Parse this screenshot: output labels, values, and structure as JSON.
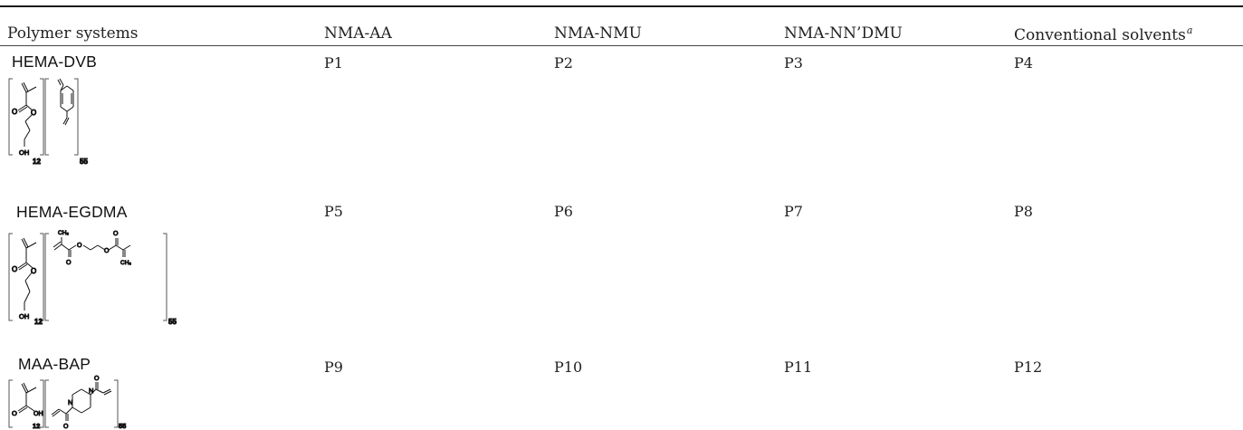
{
  "table": {
    "headers": [
      "Polymer systems",
      "NMA-AA",
      "NMA-NMU",
      "NMA-NN’DMU",
      "Conventional solvents"
    ],
    "header_footnote_mark": "a",
    "rows": [
      {
        "system": "HEMA-DVB",
        "cells": [
          "P1",
          "P2",
          "P3",
          "P4"
        ],
        "structure_labels": {
          "o1": "O",
          "o2": "O",
          "oh": "OH",
          "n1": "12",
          "n2": "55"
        }
      },
      {
        "system": "HEMA-EGDMA",
        "cells": [
          "P5",
          "P6",
          "P7",
          "P8"
        ],
        "structure_labels": {
          "o1": "O",
          "o2": "O",
          "oh": "OH",
          "ch3a": "CH₃",
          "o3": "O",
          "o4": "O",
          "o5": "O",
          "o6": "O",
          "ch3b": "CH₃",
          "n1": "12",
          "n2": "55"
        }
      },
      {
        "system": "MAA-BAP",
        "cells": [
          "P9",
          "P10",
          "P11",
          "P12"
        ],
        "structure_labels": {
          "o1": "O",
          "oh": "OH",
          "n_a": "N",
          "n_b": "N",
          "o2": "O",
          "o3": "O",
          "n1": "12",
          "n2": "55"
        }
      }
    ]
  }
}
